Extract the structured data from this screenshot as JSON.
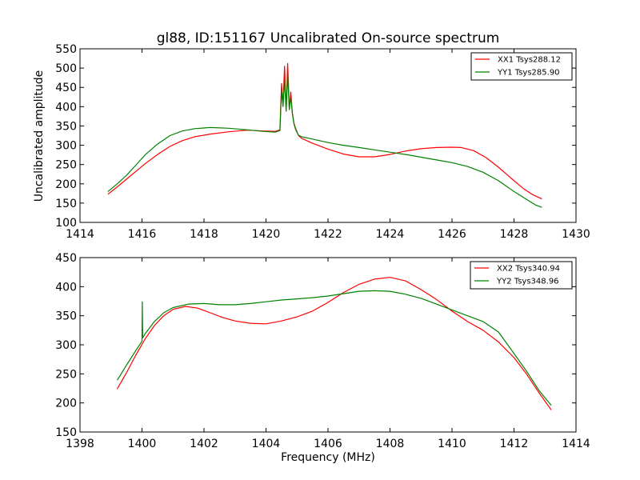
{
  "chart_data": [
    {
      "type": "line",
      "title": "gl88, ID:151167 Uncalibrated On-source spectrum",
      "xlabel": "",
      "ylabel": "Uncalibrated amplitude",
      "xlim": [
        1414,
        1430
      ],
      "ylim": [
        100,
        550
      ],
      "xticks": [
        1414,
        1416,
        1418,
        1420,
        1422,
        1424,
        1426,
        1428,
        1430
      ],
      "yticks": [
        100,
        150,
        200,
        250,
        300,
        350,
        400,
        450,
        500,
        550
      ],
      "legend_position": "top-right",
      "series": [
        {
          "name": "XX1 Tsys288.12",
          "color": "#ff0000",
          "x": [
            1414.9,
            1415.2,
            1415.5,
            1415.8,
            1416.1,
            1416.5,
            1416.9,
            1417.3,
            1417.7,
            1418.2,
            1418.8,
            1419.4,
            1419.9,
            1420.3,
            1420.45,
            1420.5,
            1420.55,
            1420.6,
            1420.65,
            1420.7,
            1420.75,
            1420.8,
            1420.85,
            1420.9,
            1420.95,
            1421.0,
            1421.05,
            1421.15,
            1421.5,
            1422.0,
            1422.5,
            1423.0,
            1423.5,
            1424.0,
            1424.5,
            1425.0,
            1425.5,
            1426.0,
            1426.3,
            1426.7,
            1427.1,
            1427.5,
            1427.9,
            1428.3,
            1428.6,
            1428.9
          ],
          "values": [
            173,
            192,
            212,
            232,
            252,
            276,
            297,
            312,
            322,
            329,
            335,
            339,
            337,
            336,
            340,
            460,
            405,
            505,
            390,
            512,
            395,
            438,
            385,
            358,
            345,
            335,
            325,
            318,
            305,
            290,
            277,
            270,
            270,
            276,
            285,
            291,
            294,
            295,
            294,
            286,
            268,
            243,
            215,
            188,
            172,
            161
          ]
        },
        {
          "name": "YY1 Tsys285.90",
          "color": "#008000",
          "x": [
            1414.9,
            1415.2,
            1415.5,
            1415.8,
            1416.1,
            1416.5,
            1416.9,
            1417.3,
            1417.7,
            1418.2,
            1418.8,
            1419.4,
            1419.9,
            1420.3,
            1420.45,
            1420.5,
            1420.55,
            1420.6,
            1420.65,
            1420.7,
            1420.75,
            1420.8,
            1420.85,
            1420.9,
            1420.95,
            1421.0,
            1421.05,
            1421.15,
            1421.5,
            1422.0,
            1422.5,
            1423.0,
            1423.5,
            1424.0,
            1424.5,
            1425.0,
            1425.5,
            1426.0,
            1426.5,
            1427.0,
            1427.5,
            1428.0,
            1428.4,
            1428.7,
            1428.9
          ],
          "values": [
            180,
            200,
            222,
            248,
            275,
            303,
            325,
            337,
            343,
            346,
            344,
            340,
            336,
            334,
            338,
            440,
            400,
            470,
            388,
            485,
            392,
            425,
            383,
            356,
            342,
            333,
            326,
            322,
            316,
            307,
            300,
            294,
            288,
            282,
            276,
            269,
            262,
            255,
            245,
            230,
            208,
            180,
            160,
            145,
            139
          ]
        }
      ]
    },
    {
      "type": "line",
      "title": "",
      "xlabel": "Frequency (MHz)",
      "ylabel": "",
      "xlim": [
        1398,
        1414
      ],
      "ylim": [
        150,
        450
      ],
      "xticks": [
        1398,
        1400,
        1402,
        1404,
        1406,
        1408,
        1410,
        1412,
        1414
      ],
      "yticks": [
        150,
        200,
        250,
        300,
        350,
        400,
        450
      ],
      "legend_position": "top-right",
      "series": [
        {
          "name": "XX2 Tsys340.94",
          "color": "#ff0000",
          "x": [
            1399.2,
            1399.5,
            1399.8,
            1400.1,
            1400.4,
            1400.7,
            1401.0,
            1401.4,
            1401.8,
            1402.2,
            1402.6,
            1403.0,
            1403.5,
            1404.0,
            1404.5,
            1405.0,
            1405.5,
            1406.0,
            1406.5,
            1407.0,
            1407.5,
            1408.0,
            1408.5,
            1409.0,
            1409.5,
            1410.0,
            1410.5,
            1411.0,
            1411.5,
            1412.0,
            1412.4,
            1412.8,
            1413.2
          ],
          "values": [
            224,
            252,
            282,
            310,
            333,
            350,
            361,
            366,
            363,
            355,
            347,
            341,
            337,
            336,
            341,
            348,
            358,
            373,
            390,
            404,
            413,
            416,
            410,
            395,
            378,
            358,
            340,
            325,
            305,
            278,
            250,
            218,
            188
          ]
        },
        {
          "name": "YY2 Tsys348.96",
          "color": "#008000",
          "x": [
            1399.2,
            1399.5,
            1399.8,
            1400.0,
            1400.01,
            1400.02,
            1400.1,
            1400.4,
            1400.7,
            1401.0,
            1401.5,
            1402.0,
            1402.5,
            1403.0,
            1403.5,
            1404.0,
            1404.5,
            1405.0,
            1405.5,
            1406.0,
            1406.5,
            1407.0,
            1407.5,
            1408.0,
            1408.5,
            1409.0,
            1409.5,
            1410.0,
            1410.5,
            1411.0,
            1411.5,
            1412.0,
            1412.4,
            1412.8,
            1413.2
          ],
          "values": [
            239,
            265,
            290,
            306,
            374,
            312,
            319,
            340,
            355,
            364,
            370,
            371,
            369,
            369,
            371,
            374,
            377,
            379,
            381,
            384,
            388,
            392,
            393,
            392,
            387,
            380,
            370,
            360,
            350,
            340,
            322,
            285,
            255,
            222,
            196
          ]
        }
      ]
    }
  ]
}
